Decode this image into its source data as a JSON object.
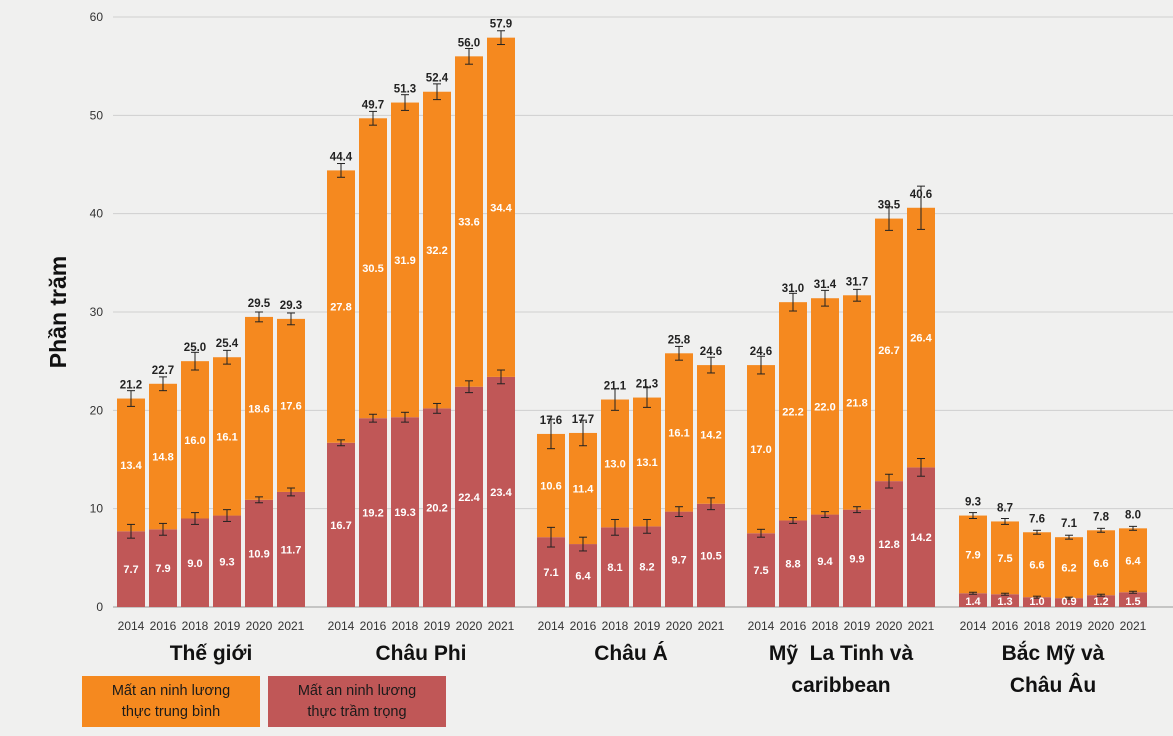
{
  "colors": {
    "moderate": "#f5891f",
    "severe": "#c05757",
    "grid": "#cfcfcf",
    "background": "#f0f0ef"
  },
  "legend": {
    "moderate_label": "Mất an ninh lương\nthực trung bình",
    "severe_label": "Mất an ninh lương\nthực trầm trọng"
  },
  "chart_data": {
    "type": "bar",
    "stacked": true,
    "ylabel": "Phần trăm",
    "ylim": [
      0,
      60
    ],
    "yticks": [
      0,
      10,
      20,
      30,
      40,
      50,
      60
    ],
    "grid": true,
    "legend_placement": "bottom-left",
    "groups": [
      {
        "name": "Thế giới",
        "years": [
          "2014",
          "2016",
          "2018",
          "2019",
          "2020",
          "2021"
        ],
        "severe": [
          7.7,
          7.9,
          9.0,
          9.3,
          10.9,
          11.7
        ],
        "moderate": [
          13.4,
          14.8,
          16.0,
          16.1,
          18.6,
          17.6
        ],
        "total": [
          21.2,
          22.7,
          25.0,
          25.4,
          29.5,
          29.3
        ],
        "total_error": [
          0.8,
          0.7,
          0.9,
          0.7,
          0.5,
          0.6
        ],
        "severe_error": [
          0.7,
          0.6,
          0.6,
          0.6,
          0.3,
          0.4
        ]
      },
      {
        "name": "Châu Phi",
        "years": [
          "2014",
          "2016",
          "2018",
          "2019",
          "2020",
          "2021"
        ],
        "severe": [
          16.7,
          19.2,
          19.3,
          20.2,
          22.4,
          23.4
        ],
        "moderate": [
          27.8,
          30.5,
          31.9,
          32.2,
          33.6,
          34.4
        ],
        "total": [
          44.4,
          49.7,
          51.3,
          52.4,
          56.0,
          57.9
        ],
        "total_error": [
          0.7,
          0.7,
          0.8,
          0.8,
          0.8,
          0.7
        ],
        "severe_error": [
          0.3,
          0.4,
          0.5,
          0.5,
          0.6,
          0.7
        ]
      },
      {
        "name": "Châu Á",
        "years": [
          "2014",
          "2016",
          "2018",
          "2019",
          "2020",
          "2021"
        ],
        "severe": [
          7.1,
          6.4,
          8.1,
          8.2,
          9.7,
          10.5
        ],
        "moderate": [
          10.6,
          11.4,
          13.0,
          13.1,
          16.1,
          14.2
        ],
        "total": [
          17.6,
          17.7,
          21.1,
          21.3,
          25.8,
          24.6
        ],
        "total_error": [
          1.5,
          1.3,
          1.1,
          1.0,
          0.7,
          0.8
        ],
        "severe_error": [
          1.0,
          0.7,
          0.8,
          0.7,
          0.5,
          0.6
        ]
      },
      {
        "name": "Mỹ  La Tinh và\ncaribbean",
        "years": [
          "2014",
          "2016",
          "2018",
          "2019",
          "2020",
          "2021"
        ],
        "severe": [
          7.5,
          8.8,
          9.4,
          9.9,
          12.8,
          14.2
        ],
        "moderate": [
          17.0,
          22.2,
          22.0,
          21.8,
          26.7,
          26.4
        ],
        "total": [
          24.6,
          31.0,
          31.4,
          31.7,
          39.5,
          40.6
        ],
        "total_error": [
          0.9,
          0.9,
          0.8,
          0.6,
          1.2,
          2.2
        ],
        "severe_error": [
          0.4,
          0.3,
          0.3,
          0.3,
          0.7,
          0.9
        ]
      },
      {
        "name": "Bắc Mỹ và\nChâu Âu",
        "years": [
          "2014",
          "2016",
          "2018",
          "2019",
          "2020",
          "2021"
        ],
        "severe": [
          1.4,
          1.3,
          1.0,
          0.9,
          1.2,
          1.5
        ],
        "moderate": [
          7.9,
          7.5,
          6.6,
          6.2,
          6.6,
          6.4
        ],
        "total": [
          9.3,
          8.7,
          7.6,
          7.1,
          7.8,
          8.0
        ],
        "total_error": [
          0.3,
          0.3,
          0.2,
          0.2,
          0.2,
          0.2
        ],
        "severe_error": [
          0.1,
          0.1,
          0.1,
          0.1,
          0.1,
          0.1
        ]
      }
    ]
  }
}
